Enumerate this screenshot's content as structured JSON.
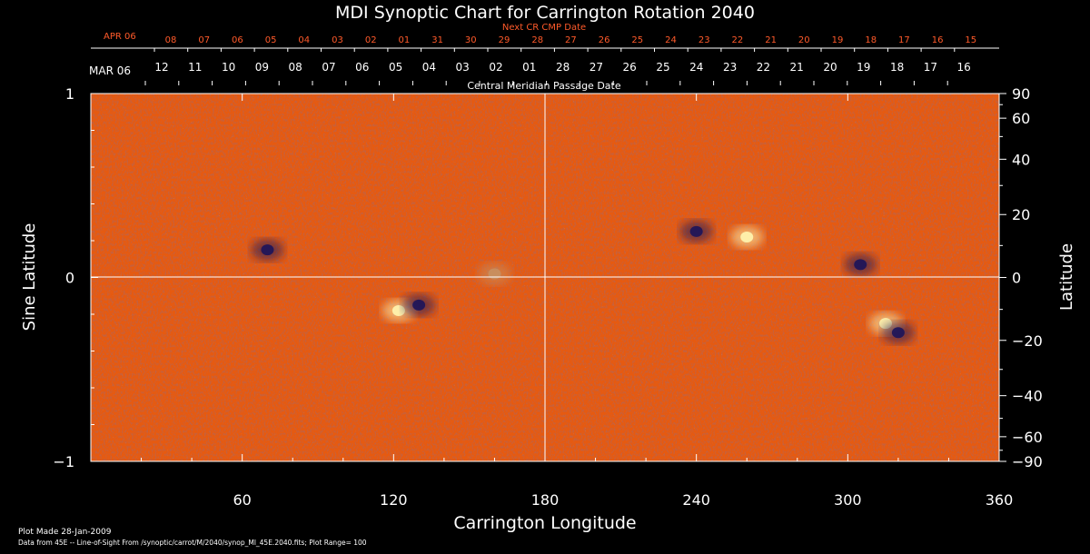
{
  "chart_data": {
    "type": "heatmap",
    "title": "MDI Synoptic Chart for Carrington Rotation 2040",
    "xlabel": "Carrington Longitude",
    "ylabel_left": "Sine Latitude",
    "ylabel_right": "Latitude",
    "xlim": [
      0,
      360
    ],
    "ylim": [
      -1,
      1
    ],
    "x_ticks": [
      60,
      120,
      180,
      240,
      300,
      360
    ],
    "y_left_ticks": [
      {
        "value": 1,
        "label": "1"
      },
      {
        "value": 0,
        "label": "0"
      },
      {
        "value": -1,
        "label": "−1"
      }
    ],
    "y_right_ticks": [
      {
        "deg": 90,
        "label": "90"
      },
      {
        "deg": 60,
        "label": "60"
      },
      {
        "deg": 40,
        "label": "40"
      },
      {
        "deg": 20,
        "label": "20"
      },
      {
        "deg": 0,
        "label": "0"
      },
      {
        "deg": -20,
        "label": "−20"
      },
      {
        "deg": -40,
        "label": "−40"
      },
      {
        "deg": -60,
        "label": "−60"
      },
      {
        "deg": -90,
        "label": "−90"
      }
    ],
    "cmp_axis_label": "Central Meridian Passage Date",
    "cmp_month_label": "MAR 06",
    "cmp_dates": [
      "12",
      "11",
      "10",
      "09",
      "08",
      "07",
      "06",
      "05",
      "04",
      "03",
      "02",
      "01",
      "28",
      "27",
      "26",
      "25",
      "24",
      "23",
      "22",
      "21",
      "20",
      "19",
      "18",
      "17",
      "16"
    ],
    "next_axis_label": "Next CR CMP Date",
    "next_month_label": "APR 06",
    "next_dates": [
      "08",
      "07",
      "06",
      "05",
      "04",
      "03",
      "02",
      "01",
      "31",
      "30",
      "29",
      "28",
      "27",
      "26",
      "25",
      "24",
      "23",
      "22",
      "21",
      "20",
      "19",
      "18",
      "17",
      "16",
      "15"
    ],
    "active_regions": [
      {
        "lon": 70,
        "sinlat": 0.15,
        "polarity": "negative"
      },
      {
        "lon": 122,
        "sinlat": -0.18,
        "polarity": "positive"
      },
      {
        "lon": 130,
        "sinlat": -0.15,
        "polarity": "negative"
      },
      {
        "lon": 160,
        "sinlat": 0.02,
        "polarity": "mixed"
      },
      {
        "lon": 240,
        "sinlat": 0.25,
        "polarity": "negative"
      },
      {
        "lon": 260,
        "sinlat": 0.22,
        "polarity": "positive"
      },
      {
        "lon": 305,
        "sinlat": 0.07,
        "polarity": "negative"
      },
      {
        "lon": 315,
        "sinlat": -0.25,
        "polarity": "positive"
      },
      {
        "lon": 320,
        "sinlat": -0.3,
        "polarity": "negative"
      }
    ],
    "grid": true,
    "colors": {
      "background": "#000000",
      "field_base": "#e65a10",
      "positive": "#fff6b0",
      "negative": "#1c145a",
      "axis": "#ffffff",
      "date_labels": "#ff5a2a"
    }
  },
  "footer": {
    "plot_made": "Plot Made 28-Jan-2009",
    "source": "Data from 45E -- Line-of-Sight From /synoptic/carrot/M/2040/synop_Ml_45E.2040.fits; Plot Range=  100"
  }
}
